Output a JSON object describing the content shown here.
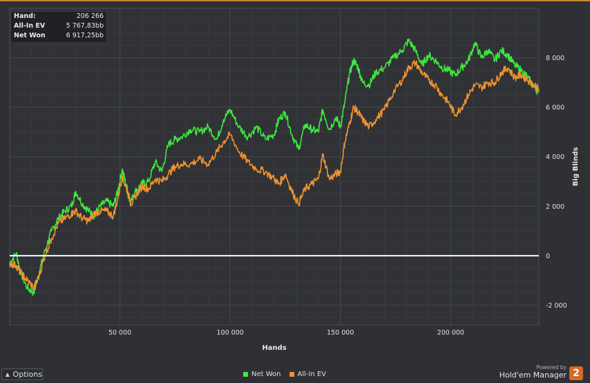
{
  "info_box": {
    "rows": [
      {
        "label": "Hand:",
        "value": "206 266"
      },
      {
        "label": "All-In EV",
        "value": "5 767,83bb"
      },
      {
        "label": "Net Won",
        "value": "6 917,25bb"
      }
    ]
  },
  "options_label": "Options",
  "brand": {
    "powered_by": "Powered by",
    "name": "Hold'em Manager",
    "logo_text": "2"
  },
  "colors": {
    "net_won": "#3ee83e",
    "all_in_ev": "#f0922f",
    "zero_line": "#ffffff",
    "grid": "#45484d"
  },
  "chart_data": {
    "type": "line",
    "xlabel": "Hands",
    "ylabel": "Big Blinds",
    "xlim": [
      0,
      240000
    ],
    "ylim": [
      -2800,
      10000
    ],
    "x_ticks": [
      50000,
      100000,
      150000,
      200000
    ],
    "x_tick_labels": [
      "50 000",
      "100 000",
      "150 000",
      "200 000"
    ],
    "y_ticks": [
      -2000,
      0,
      2000,
      4000,
      6000,
      8000
    ],
    "y_tick_labels": [
      "-2 000",
      "0",
      "2 000",
      "4 000",
      "6 000",
      "8 000"
    ],
    "grid": true,
    "legend_position": "bottom-center",
    "series": [
      {
        "name": "Net Won",
        "color": "#3ee83e",
        "x": [
          0,
          3000,
          5000,
          8000,
          11000,
          13000,
          16000,
          19000,
          22000,
          25000,
          28000,
          30000,
          33000,
          36000,
          38000,
          41000,
          44000,
          47000,
          49000,
          51000,
          53000,
          55000,
          57000,
          60000,
          63000,
          66000,
          69000,
          72000,
          75000,
          78000,
          82000,
          86000,
          90000,
          94000,
          97000,
          100000,
          104000,
          108000,
          112000,
          116000,
          120000,
          122000,
          125000,
          128000,
          131000,
          134000,
          137000,
          140000,
          142000,
          145000,
          148000,
          150000,
          152000,
          154000,
          156000,
          158000,
          160000,
          163000,
          166000,
          170000,
          174000,
          178000,
          181000,
          184000,
          187000,
          190000,
          193000,
          196000,
          199000,
          202000,
          205000,
          208000,
          211000,
          214000,
          217000,
          220000,
          223000,
          226000,
          229000,
          232000,
          235000,
          238000,
          240000
        ],
        "y": [
          -300,
          100,
          -700,
          -1300,
          -1500,
          -800,
          200,
          1000,
          1500,
          1800,
          2000,
          2600,
          2100,
          1800,
          1600,
          2000,
          2200,
          2000,
          2600,
          3500,
          2800,
          2200,
          2600,
          2900,
          3000,
          3800,
          3400,
          4500,
          4700,
          4800,
          5100,
          5000,
          5200,
          4700,
          5500,
          5900,
          5200,
          4800,
          5200,
          4700,
          4900,
          5500,
          5800,
          4900,
          4300,
          5300,
          5100,
          5000,
          5900,
          5100,
          5600,
          5200,
          6200,
          7300,
          7900,
          7600,
          7000,
          6900,
          7400,
          7600,
          8000,
          8300,
          8700,
          8300,
          7700,
          8100,
          7900,
          7600,
          7500,
          7300,
          7600,
          7900,
          8600,
          8000,
          8300,
          7900,
          8300,
          8100,
          7700,
          7500,
          7200,
          6800,
          6600
        ]
      },
      {
        "name": "All-In EV",
        "color": "#f0922f",
        "x": [
          0,
          3000,
          5000,
          8000,
          11000,
          13000,
          16000,
          19000,
          22000,
          25000,
          28000,
          30000,
          33000,
          36000,
          38000,
          41000,
          44000,
          47000,
          49000,
          51000,
          53000,
          55000,
          57000,
          60000,
          63000,
          66000,
          69000,
          72000,
          75000,
          78000,
          82000,
          86000,
          90000,
          94000,
          97000,
          100000,
          104000,
          108000,
          112000,
          116000,
          120000,
          122000,
          125000,
          128000,
          131000,
          134000,
          137000,
          140000,
          142000,
          145000,
          148000,
          150000,
          152000,
          154000,
          156000,
          158000,
          160000,
          163000,
          166000,
          170000,
          174000,
          178000,
          181000,
          184000,
          187000,
          190000,
          193000,
          196000,
          199000,
          202000,
          205000,
          208000,
          211000,
          214000,
          217000,
          220000,
          223000,
          226000,
          229000,
          232000,
          235000,
          238000,
          240000
        ],
        "y": [
          -300,
          -400,
          -700,
          -1000,
          -1300,
          -900,
          0,
          700,
          1300,
          1500,
          1700,
          1800,
          1500,
          1400,
          1700,
          1800,
          1800,
          1600,
          2300,
          3200,
          2700,
          2100,
          2400,
          2800,
          2700,
          3100,
          3000,
          3300,
          3600,
          3700,
          3700,
          3900,
          3700,
          4200,
          4600,
          4900,
          4200,
          3800,
          3500,
          3400,
          3100,
          2900,
          3300,
          2600,
          2100,
          2700,
          2900,
          3100,
          4100,
          3100,
          3300,
          3400,
          4600,
          5300,
          6000,
          5800,
          5500,
          5200,
          5500,
          5900,
          6600,
          7100,
          7600,
          7800,
          7400,
          7100,
          6900,
          6500,
          6200,
          5700,
          6000,
          6500,
          6900,
          6800,
          7000,
          7000,
          7400,
          7600,
          7200,
          7300,
          7100,
          6900,
          6700
        ]
      }
    ]
  }
}
